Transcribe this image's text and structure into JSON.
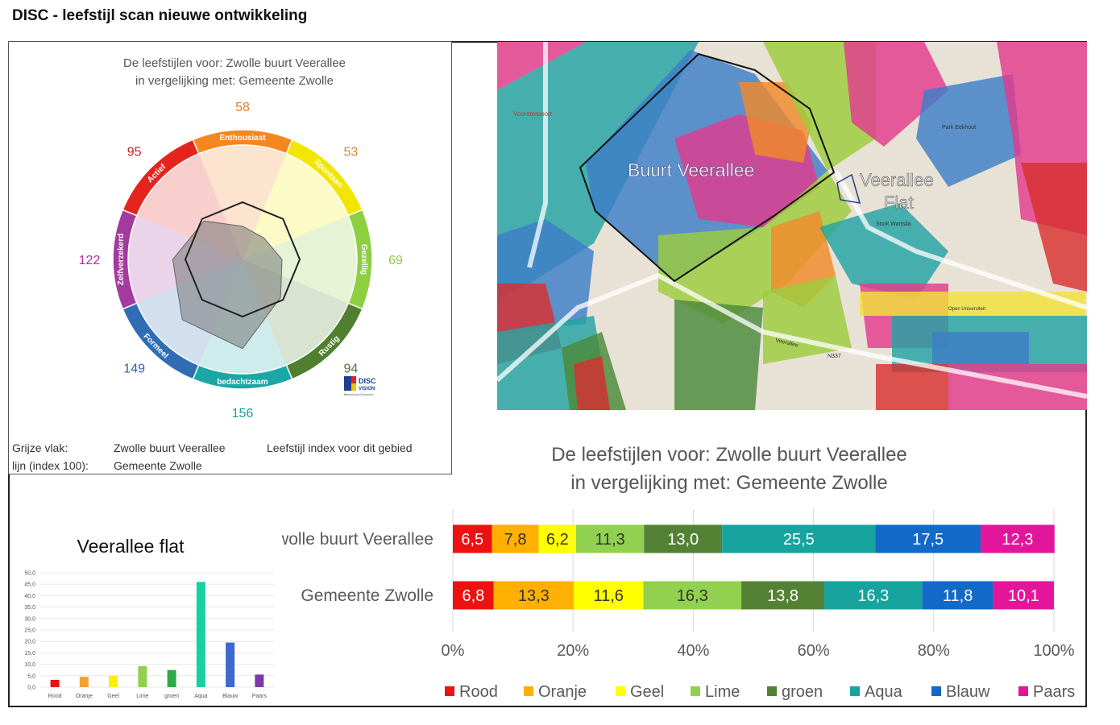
{
  "page": {
    "title": "DISC - leefstijl scan nieuwe ontwikkeling"
  },
  "wheel": {
    "title_line1": "De leefstijlen voor:  Zwolle buurt Veerallee",
    "title_line2": "in vergelijking met: Gemeente Zwolle",
    "logo": {
      "text1": "DISC",
      "text2": "VISION",
      "text3": "Behavioural Economics"
    },
    "legend": {
      "grey_label": "Grijze vlak:",
      "grey_value": "Zwolle buurt Veerallee",
      "line_label": "lijn (index 100):",
      "line_value": "Gemeente Zwolle",
      "note": "Leefstijl index voor dit gebied"
    }
  },
  "map": {
    "label_buurt": "Buurt Veerallee",
    "label_flat_1": "Veerallee",
    "label_flat_2": "Flat",
    "street_labels": [
      "Voorsterpoort",
      "Park Eekhout",
      "Stork Wartsila",
      "Veerallee",
      "N337",
      "Open Universiteit"
    ],
    "colors": {
      "blue": "#3d7ec7",
      "aqua": "#22a3a3",
      "lime": "#9ccc3c",
      "green": "#4a8a3a",
      "orange": "#f08a2a",
      "pink": "#e23b8c",
      "red": "#d93030",
      "yellow": "#f2e23a",
      "road": "#e8e2d6"
    }
  },
  "chart_data": [
    {
      "type": "radar",
      "title": "De leefstijlen voor:  Zwolle buurt Veerallee in vergelijking met: Gemeente Zwolle",
      "categories": [
        "Enthousiast",
        "Spontaan",
        "Gezellig",
        "Rustig",
        "bedachtzaam",
        "Formeel",
        "Zelfverzekerd",
        "Actief"
      ],
      "series": [
        {
          "name": "Zwolle buurt Veerallee",
          "values": [
            58,
            53,
            69,
            94,
            156,
            149,
            122,
            95
          ]
        },
        {
          "name": "Gemeente Zwolle",
          "values": [
            100,
            100,
            100,
            100,
            100,
            100,
            100,
            100
          ]
        }
      ],
      "value_labels": [
        "58",
        "53",
        "69",
        "94",
        "156",
        "149",
        "122",
        "95"
      ],
      "segment_colors": [
        "#f6861f",
        "#f2e600",
        "#8ccf3f",
        "#4f7f2f",
        "#1aa7a5",
        "#2f6db5",
        "#a43a9e",
        "#e52420"
      ],
      "label_colors": [
        "#e87b2a",
        "#e08a2a",
        "#94c84a",
        "#4a7a30",
        "#1a9a9a",
        "#3060a8",
        "#b0309e",
        "#cc2020"
      ]
    },
    {
      "type": "bar",
      "orientation": "horizontal",
      "stacked": "percent",
      "title_line1": "De leefstijlen voor:  Zwolle buurt Veerallee",
      "title_line2": "in vergelijking met: Gemeente Zwolle",
      "categories": [
        "Zwolle buurt Veerallee",
        "Gemeente Zwolle"
      ],
      "series": [
        {
          "name": "Rood",
          "color": "#ee1111",
          "values": [
            6.5,
            6.8
          ],
          "labels": [
            "6,5",
            "6,8"
          ]
        },
        {
          "name": "Oranje",
          "color": "#ffb000",
          "values": [
            7.8,
            13.3
          ],
          "labels": [
            "7,8",
            "13,3"
          ]
        },
        {
          "name": "Geel",
          "color": "#ffff00",
          "values": [
            6.2,
            11.6
          ],
          "labels": [
            "6,2",
            "11,6"
          ]
        },
        {
          "name": "Lime",
          "color": "#92d050",
          "values": [
            11.3,
            16.3
          ],
          "labels": [
            "11,3",
            "16,3"
          ]
        },
        {
          "name": "groen",
          "color": "#548235",
          "values": [
            13.0,
            13.8
          ],
          "labels": [
            "13,0",
            "13,8"
          ]
        },
        {
          "name": "Aqua",
          "color": "#17a39e",
          "values": [
            25.5,
            16.3
          ],
          "labels": [
            "25,5",
            "16,3"
          ]
        },
        {
          "name": "Blauw",
          "color": "#1369c8",
          "values": [
            17.5,
            11.8
          ],
          "labels": [
            "17,5",
            "11,8"
          ]
        },
        {
          "name": "Paars",
          "color": "#e3169b",
          "values": [
            12.3,
            10.1
          ],
          "labels": [
            "12,3",
            "10,1"
          ]
        }
      ],
      "xlim": [
        0,
        100
      ],
      "xticks": [
        "0%",
        "20%",
        "40%",
        "60%",
        "80%",
        "100%"
      ],
      "grid": true,
      "legend": "bottom"
    },
    {
      "type": "bar",
      "title": "Veerallee flat",
      "categories": [
        "Rood",
        "Oranje",
        "Geel",
        "Lime",
        "groen",
        "Aqua",
        "Blauw",
        "Paars"
      ],
      "values": [
        3.2,
        4.5,
        5.0,
        9.2,
        7.5,
        46.0,
        19.5,
        5.5
      ],
      "colors": [
        "#ee1111",
        "#f5a030",
        "#ffee00",
        "#92d050",
        "#2eaa4a",
        "#19d0a0",
        "#3a6ad0",
        "#7a3aa8"
      ],
      "ylim": [
        0,
        50
      ],
      "yticks": [
        "0,0",
        "5,0",
        "10,0",
        "15,0",
        "20,0",
        "25,0",
        "30,0",
        "35,0",
        "40,0",
        "45,0",
        "50,0"
      ],
      "grid": true
    }
  ]
}
